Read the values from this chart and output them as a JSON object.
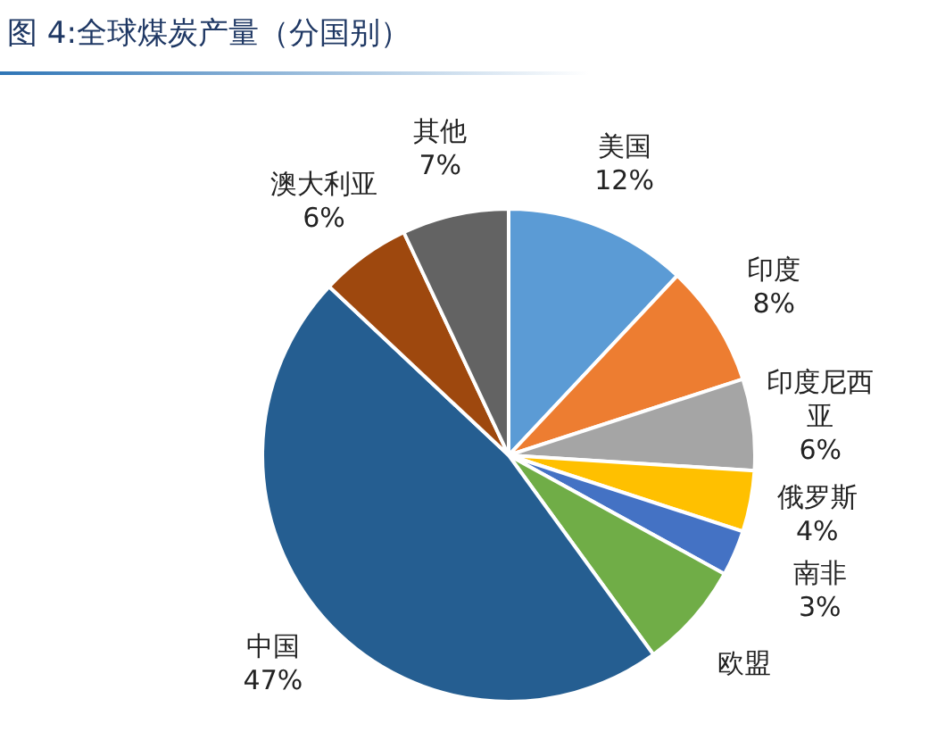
{
  "chart_data": {
    "type": "pie",
    "title": "图 4:全球煤炭产量（分国别）",
    "categories": [
      "美国",
      "印度",
      "印度尼西亚",
      "俄罗斯",
      "南非",
      "欧盟",
      "中国",
      "澳大利亚",
      "其他"
    ],
    "values": [
      12,
      8,
      6,
      4,
      3,
      7,
      47,
      6,
      7
    ],
    "colors": [
      "#5b9bd5",
      "#ed7d31",
      "#a5a5a5",
      "#ffc000",
      "#4472c4",
      "#70ad47",
      "#255e91",
      "#9e480e",
      "#636363"
    ],
    "value_labels": [
      "12%",
      "8%",
      "6%",
      "4%",
      "3%",
      null,
      "47%",
      "6%",
      "7%"
    ]
  }
}
